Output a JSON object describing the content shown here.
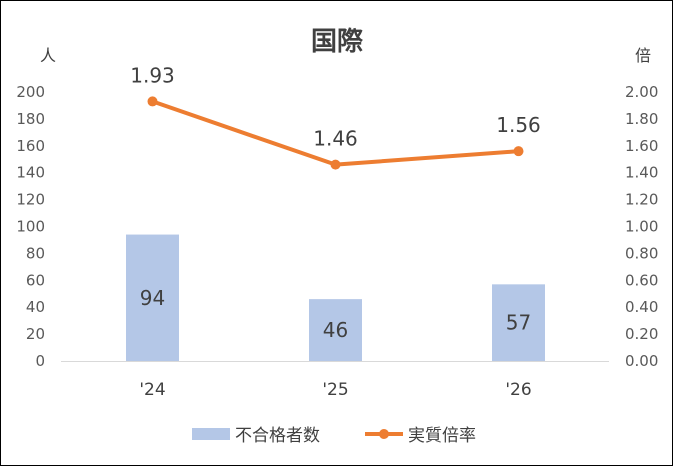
{
  "chart_data": {
    "type": "bar+line",
    "title": "国際",
    "categories": [
      "'24",
      "'25",
      "'26"
    ],
    "left_axis": {
      "unit": "人",
      "ylim": [
        0,
        200
      ],
      "ticks": [
        "0",
        "20",
        "40",
        "60",
        "80",
        "100",
        "120",
        "140",
        "160",
        "180",
        "200"
      ]
    },
    "right_axis": {
      "unit": "倍",
      "ylim": [
        0,
        2
      ],
      "ticks": [
        "0.00",
        "0.20",
        "0.40",
        "0.60",
        "0.80",
        "1.00",
        "1.20",
        "1.40",
        "1.60",
        "1.80",
        "2.00"
      ]
    },
    "series": [
      {
        "name": "不合格者数",
        "type": "bar",
        "axis": "left",
        "values": [
          94,
          46,
          57
        ],
        "labels": [
          "94",
          "46",
          "57"
        ],
        "color": "#B4C7E7"
      },
      {
        "name": "実質倍率",
        "type": "line",
        "axis": "right",
        "values": [
          1.93,
          1.46,
          1.56
        ],
        "labels": [
          "1.93",
          "1.46",
          "1.56"
        ],
        "color": "#ED7D31"
      }
    ],
    "legend_position": "bottom",
    "grid": false
  }
}
